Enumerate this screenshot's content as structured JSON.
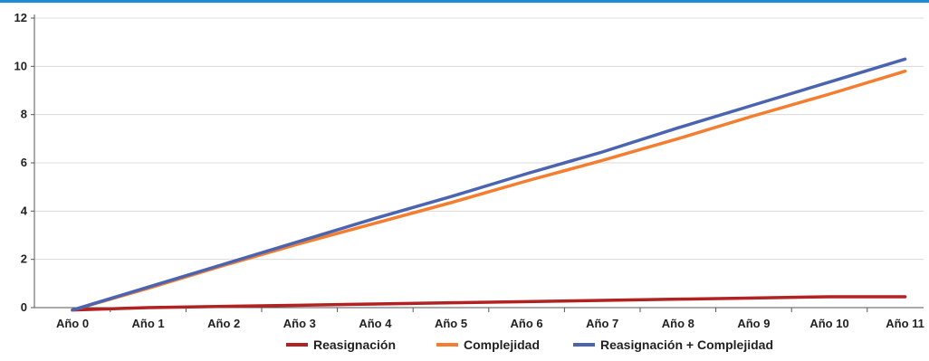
{
  "chart_data": {
    "type": "line",
    "title": "",
    "xlabel": "",
    "ylabel": "",
    "categories": [
      "Año 0",
      "Año 1",
      "Año 2",
      "Año 3",
      "Año 4",
      "Año 5",
      "Año 6",
      "Año 7",
      "Año 8",
      "Año 9",
      "Año 10",
      "Año 11"
    ],
    "ylim": [
      0,
      12
    ],
    "yticks": [
      "0",
      "2",
      "4",
      "6",
      "8",
      "10",
      "12"
    ],
    "grid": true,
    "legend_position": "bottom",
    "series": [
      {
        "name": "Reasignación",
        "color": "#b22222",
        "values": [
          -0.1,
          0.0,
          0.05,
          0.1,
          0.15,
          0.2,
          0.25,
          0.3,
          0.35,
          0.4,
          0.45,
          0.45
        ]
      },
      {
        "name": "Complejidad",
        "color": "#f47d30",
        "values": [
          -0.1,
          0.8,
          1.75,
          2.65,
          3.5,
          4.35,
          5.25,
          6.1,
          7.0,
          7.95,
          8.85,
          9.8
        ]
      },
      {
        "name": "Reasignación + Complejidad",
        "color": "#4a64b0",
        "values": [
          -0.1,
          0.85,
          1.8,
          2.75,
          3.7,
          4.6,
          5.55,
          6.45,
          7.45,
          8.4,
          9.35,
          10.3
        ]
      }
    ]
  }
}
